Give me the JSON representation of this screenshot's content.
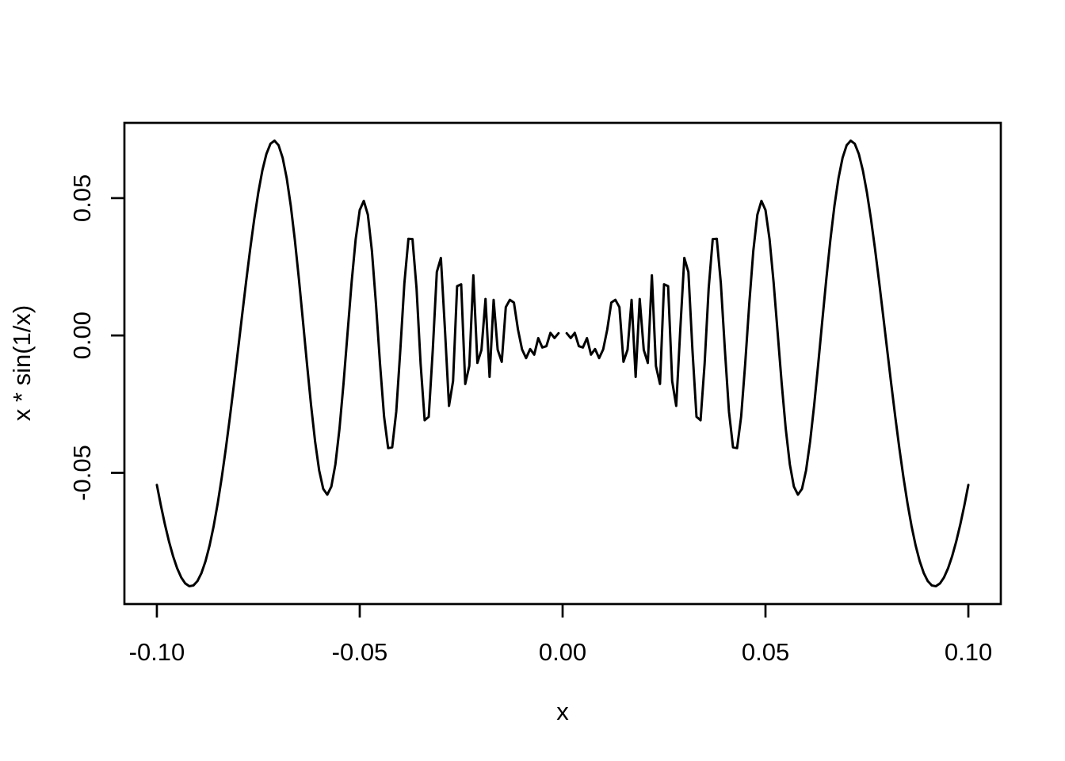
{
  "chart_data": {
    "type": "line",
    "title": "",
    "xlabel": "x",
    "ylabel": "x * sin(1/x)",
    "series": [
      {
        "name": "x * sin(1/x)",
        "y_formula": "x * sin(1/x)",
        "undefined_at_x": 0,
        "x_start": -0.1,
        "x_end": 0.1,
        "x_step": 0.001,
        "n_points": 201
      }
    ],
    "x_ticks": [
      {
        "value": -0.1,
        "label": "-0.10"
      },
      {
        "value": -0.05,
        "label": "-0.05"
      },
      {
        "value": 0.0,
        "label": "0.00"
      },
      {
        "value": 0.05,
        "label": "0.05"
      },
      {
        "value": 0.1,
        "label": "0.10"
      }
    ],
    "y_ticks": [
      {
        "value": -0.05,
        "label": "-0.05"
      },
      {
        "value": 0.0,
        "label": "0.00"
      },
      {
        "value": 0.05,
        "label": "0.05"
      }
    ],
    "xlim": [
      -0.108,
      0.108
    ],
    "ylim_padding_frac": 0.04,
    "xlim_padding_frac": 0.04,
    "y_observed_min": -0.0913,
    "y_observed_max": 0.0709,
    "grid": false,
    "legend": null,
    "line_color": "#000000",
    "axis_color": "#000000",
    "text_color": "#000000",
    "background_color": "#ffffff"
  }
}
